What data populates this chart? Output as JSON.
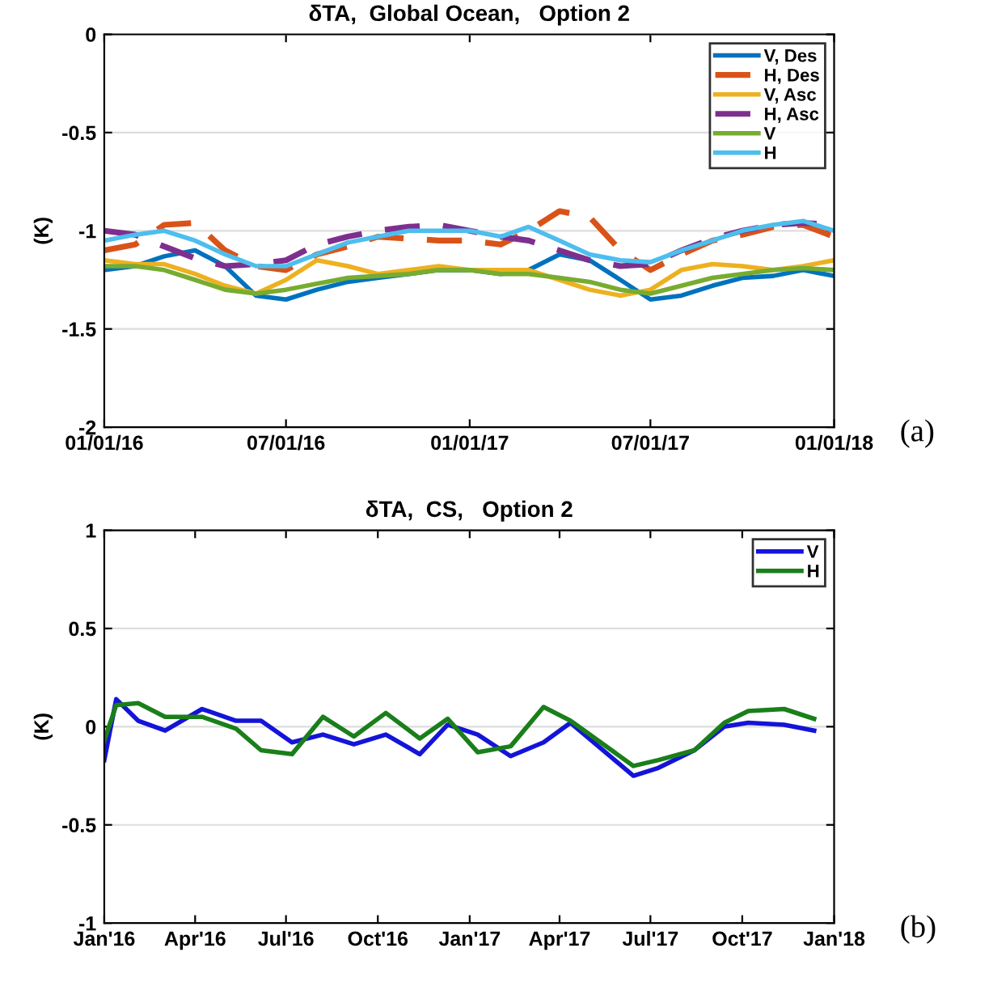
{
  "chart_data": [
    {
      "type": "line",
      "title": "δTA,  Global Ocean,   Option 2",
      "ylabel": "(K)",
      "annotations": [
        "(a)"
      ],
      "x": [
        "2016-01-01",
        "2016-02-01",
        "2016-03-01",
        "2016-04-01",
        "2016-05-01",
        "2016-06-01",
        "2016-07-01",
        "2016-08-01",
        "2016-09-01",
        "2016-10-01",
        "2016-11-01",
        "2016-12-01",
        "2017-01-01",
        "2017-02-01",
        "2017-03-01",
        "2017-04-01",
        "2017-05-01",
        "2017-06-01",
        "2017-07-01",
        "2017-08-01",
        "2017-09-01",
        "2017-10-01",
        "2017-11-01",
        "2017-12-01",
        "2018-01-01"
      ],
      "series": [
        {
          "name": "V, Des",
          "color": "#0072bd",
          "line_style": "solid",
          "values": [
            -1.2,
            -1.18,
            -1.13,
            -1.1,
            -1.18,
            -1.33,
            -1.35,
            -1.3,
            -1.26,
            -1.24,
            -1.22,
            -1.2,
            -1.2,
            -1.22,
            -1.2,
            -1.12,
            -1.15,
            -1.25,
            -1.35,
            -1.33,
            -1.28,
            -1.24,
            -1.23,
            -1.2,
            -1.23
          ]
        },
        {
          "name": "H, Des",
          "color": "#d95319",
          "line_style": "dashed",
          "values": [
            -1.1,
            -1.07,
            -0.97,
            -0.96,
            -1.1,
            -1.18,
            -1.2,
            -1.12,
            -1.08,
            -1.03,
            -1.04,
            -1.05,
            -1.05,
            -1.07,
            -1.0,
            -0.9,
            -0.93,
            -1.1,
            -1.2,
            -1.12,
            -1.05,
            -1.02,
            -0.98,
            -0.97,
            -1.03
          ]
        },
        {
          "name": "V, Asc",
          "color": "#edb120",
          "line_style": "solid",
          "values": [
            -1.15,
            -1.17,
            -1.17,
            -1.22,
            -1.28,
            -1.32,
            -1.25,
            -1.15,
            -1.18,
            -1.22,
            -1.2,
            -1.18,
            -1.2,
            -1.2,
            -1.2,
            -1.25,
            -1.3,
            -1.33,
            -1.3,
            -1.2,
            -1.17,
            -1.18,
            -1.2,
            -1.18,
            -1.15
          ]
        },
        {
          "name": "H, Asc",
          "color": "#7e2f8e",
          "line_style": "dashed",
          "values": [
            -1.0,
            -1.02,
            -1.08,
            -1.14,
            -1.18,
            -1.17,
            -1.15,
            -1.07,
            -1.03,
            -1.0,
            -0.98,
            -0.97,
            -1.0,
            -1.03,
            -1.05,
            -1.1,
            -1.15,
            -1.18,
            -1.17,
            -1.1,
            -1.04,
            -1.0,
            -0.97,
            -0.96,
            -0.97
          ]
        },
        {
          "name": "V",
          "color": "#77ac30",
          "line_style": "solid",
          "values": [
            -1.18,
            -1.18,
            -1.2,
            -1.25,
            -1.3,
            -1.32,
            -1.3,
            -1.27,
            -1.24,
            -1.23,
            -1.22,
            -1.2,
            -1.2,
            -1.22,
            -1.22,
            -1.24,
            -1.26,
            -1.3,
            -1.32,
            -1.28,
            -1.24,
            -1.22,
            -1.2,
            -1.19,
            -1.2
          ]
        },
        {
          "name": "H",
          "color": "#4dbeee",
          "line_style": "solid",
          "values": [
            -1.05,
            -1.02,
            -1.0,
            -1.05,
            -1.12,
            -1.18,
            -1.18,
            -1.12,
            -1.06,
            -1.03,
            -1.0,
            -1.0,
            -1.0,
            -1.03,
            -0.98,
            -1.05,
            -1.12,
            -1.15,
            -1.16,
            -1.1,
            -1.05,
            -1.0,
            -0.97,
            -0.95,
            -1.0
          ]
        }
      ],
      "xlim": [
        "2016-01-01",
        "2018-01-01"
      ],
      "xticks": [
        {
          "value": "2016-01-01",
          "label": "01/01/16"
        },
        {
          "value": "2016-07-01",
          "label": "07/01/16"
        },
        {
          "value": "2017-01-01",
          "label": "01/01/17"
        },
        {
          "value": "2017-07-01",
          "label": "07/01/17"
        },
        {
          "value": "2018-01-01",
          "label": "01/01/18"
        }
      ],
      "ylim": [
        -2,
        0
      ],
      "yticks": [
        -2,
        -1.5,
        -1,
        -0.5,
        0
      ],
      "grid": "y",
      "legend": "top right"
    },
    {
      "type": "line",
      "title": "δTA,  CS,   Option 2",
      "ylabel": "(K)",
      "annotations": [
        "(b)"
      ],
      "x": [
        "2016-01-01",
        "2016-01-13",
        "2016-02-04",
        "2016-03-02",
        "2016-04-08",
        "2016-05-12",
        "2016-06-06",
        "2016-07-07",
        "2016-08-07",
        "2016-09-07",
        "2016-10-09",
        "2016-11-12",
        "2016-12-10",
        "2017-01-09",
        "2017-02-11",
        "2017-03-16",
        "2017-04-12",
        "2017-06-14",
        "2017-07-09",
        "2017-08-14",
        "2017-09-13",
        "2017-10-07",
        "2017-11-12",
        "2017-12-12"
      ],
      "series": [
        {
          "name": "V",
          "color": "#1414d8",
          "line_style": "solid",
          "values": [
            -0.17,
            0.14,
            0.03,
            -0.02,
            0.09,
            0.03,
            0.03,
            -0.08,
            -0.04,
            -0.09,
            -0.04,
            -0.14,
            0.01,
            -0.04,
            -0.15,
            -0.08,
            0.02,
            -0.25,
            -0.21,
            -0.12,
            0.0,
            0.02,
            0.01,
            -0.02
          ]
        },
        {
          "name": "H",
          "color": "#1a7f1a",
          "line_style": "solid",
          "values": [
            -0.07,
            0.11,
            0.12,
            0.05,
            0.05,
            -0.01,
            -0.12,
            -0.14,
            0.05,
            -0.05,
            0.07,
            -0.06,
            0.04,
            -0.13,
            -0.1,
            0.1,
            0.03,
            -0.2,
            -0.17,
            -0.12,
            0.02,
            0.08,
            0.09,
            0.04
          ]
        }
      ],
      "xlim": [
        "2016-01-01",
        "2018-01-01"
      ],
      "xticks": [
        {
          "value": "2016-01-01",
          "label": "Jan'16"
        },
        {
          "value": "2016-04-01",
          "label": "Apr'16"
        },
        {
          "value": "2016-07-01",
          "label": "Jul'16"
        },
        {
          "value": "2016-10-01",
          "label": "Oct'16"
        },
        {
          "value": "2017-01-01",
          "label": "Jan'17"
        },
        {
          "value": "2017-04-01",
          "label": "Apr'17"
        },
        {
          "value": "2017-07-01",
          "label": "Jul'17"
        },
        {
          "value": "2017-10-01",
          "label": "Oct'17"
        },
        {
          "value": "2018-01-01",
          "label": "Jan'18"
        }
      ],
      "ylim": [
        -1,
        1
      ],
      "yticks": [
        -1,
        -0.5,
        0,
        0.5,
        1
      ],
      "grid": "y",
      "legend": "top right"
    }
  ]
}
